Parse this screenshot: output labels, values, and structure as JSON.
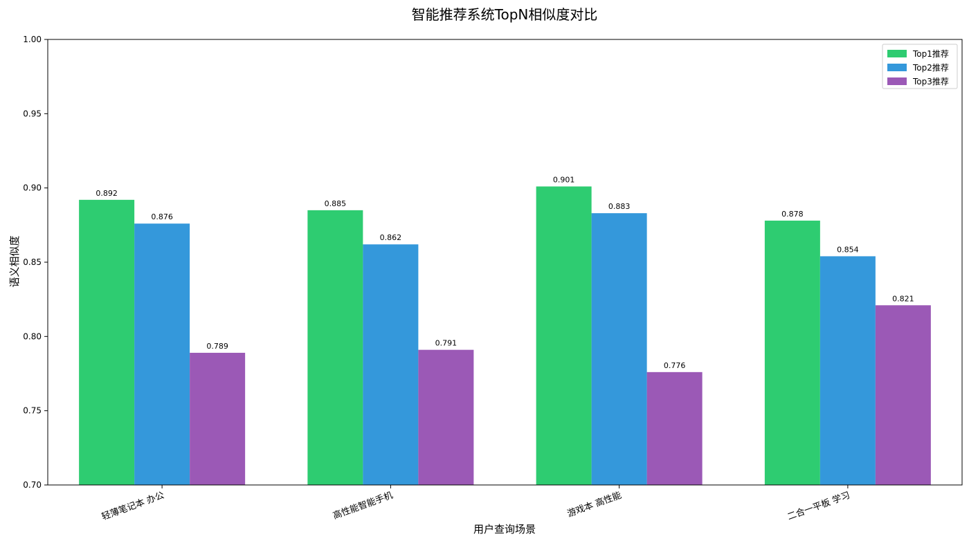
{
  "chart_data": {
    "type": "bar",
    "title": "智能推荐系统TopN相似度对比",
    "xlabel": "用户查询场景",
    "ylabel": "语义相似度",
    "ylim": [
      0.7,
      1.0
    ],
    "yticks": [
      "0.70",
      "0.75",
      "0.80",
      "0.85",
      "0.90",
      "0.95",
      "1.00"
    ],
    "categories": [
      "轻薄笔记本 办公",
      "高性能智能手机",
      "游戏本 高性能",
      "二合一平板 学习"
    ],
    "series": [
      {
        "name": "Top1推荐",
        "color": "#2ecc71",
        "values": [
          0.892,
          0.885,
          0.901,
          0.878
        ],
        "labels": [
          "0.892",
          "0.885",
          "0.901",
          "0.878"
        ]
      },
      {
        "name": "Top2推荐",
        "color": "#3498db",
        "values": [
          0.876,
          0.862,
          0.883,
          0.854
        ],
        "labels": [
          "0.876",
          "0.862",
          "0.883",
          "0.854"
        ]
      },
      {
        "name": "Top3推荐",
        "color": "#9b59b6",
        "values": [
          0.789,
          0.791,
          0.776,
          0.821
        ],
        "labels": [
          "0.789",
          "0.791",
          "0.776",
          "0.821"
        ]
      }
    ],
    "legend_position": "top-right",
    "grid": false
  }
}
